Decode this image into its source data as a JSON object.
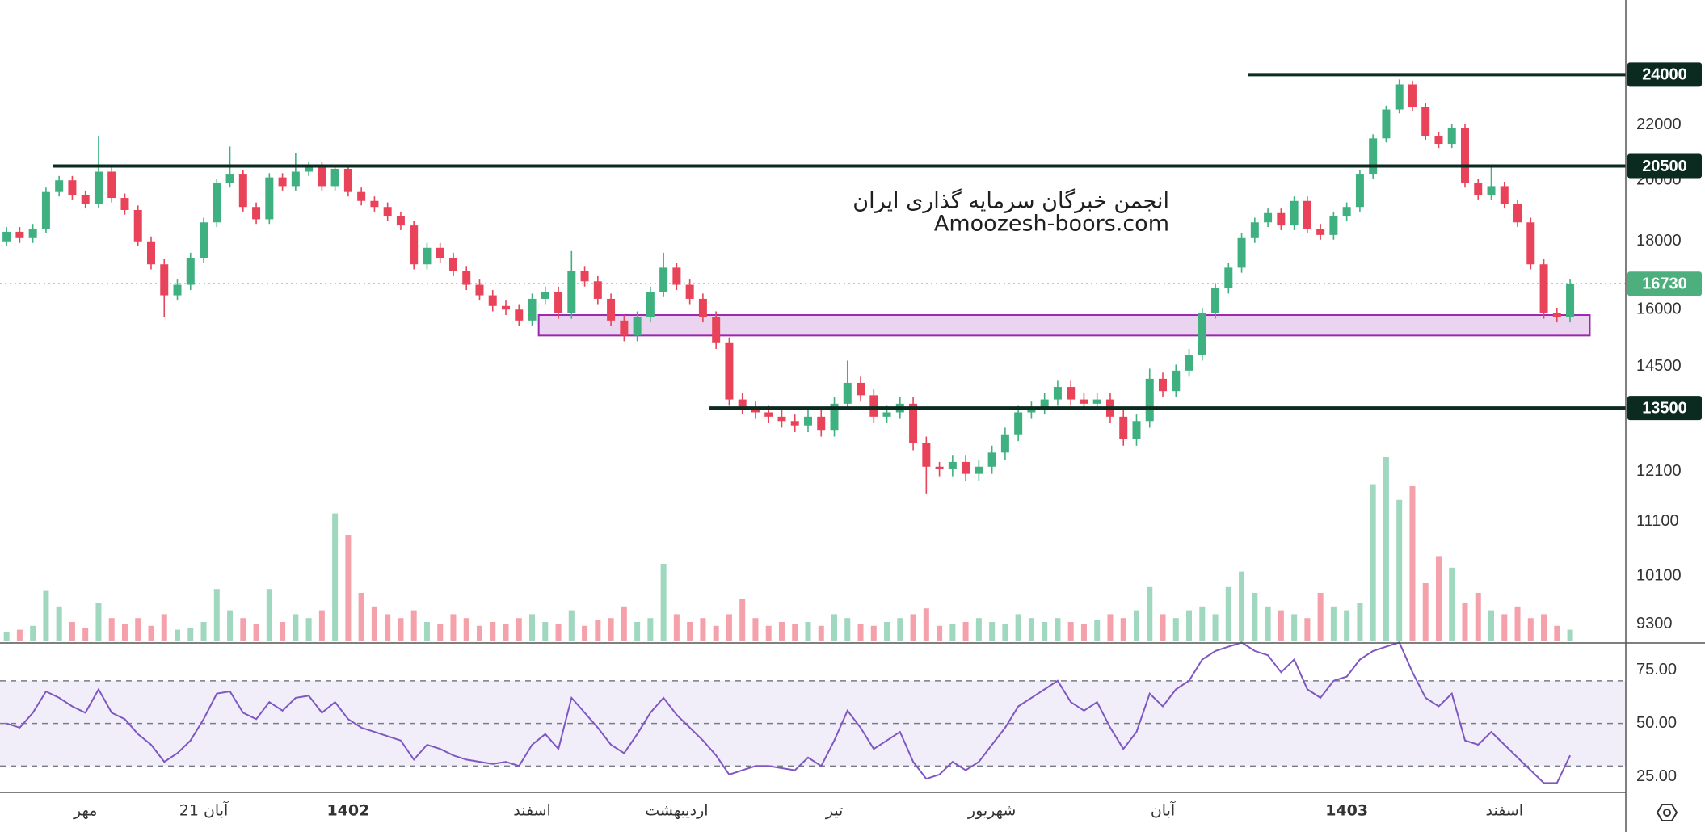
{
  "chart_data": {
    "type": "candlestick",
    "log_scale": true,
    "grid": false,
    "up_color": "#3fb07f",
    "down_color": "#e9435a",
    "ylim": [
      9025,
      27300
    ],
    "yticks": [
      22000,
      20000,
      18000,
      16000,
      14500,
      12100,
      11100,
      10100,
      9300
    ],
    "categories": [
      null,
      null,
      null,
      null,
      null,
      null,
      "مهر",
      null,
      null,
      null,
      null,
      null,
      null,
      null,
      null,
      "21 آبان",
      null,
      null,
      null,
      null,
      null,
      null,
      null,
      null,
      null,
      null,
      "1402",
      null,
      null,
      null,
      null,
      null,
      null,
      null,
      null,
      null,
      null,
      null,
      null,
      null,
      "اسفند",
      null,
      null,
      null,
      null,
      null,
      null,
      null,
      null,
      null,
      null,
      "اردیبهشت",
      null,
      null,
      null,
      null,
      null,
      null,
      null,
      null,
      null,
      null,
      null,
      "تیر",
      null,
      null,
      null,
      null,
      null,
      null,
      null,
      null,
      null,
      null,
      null,
      "شهریور",
      null,
      null,
      null,
      null,
      null,
      null,
      null,
      null,
      null,
      null,
      null,
      null,
      "آبان",
      null,
      null,
      null,
      null,
      null,
      null,
      null,
      null,
      null,
      null,
      null,
      null,
      null,
      "1403",
      null,
      null,
      null,
      null,
      null,
      null,
      null,
      null,
      null,
      null,
      null,
      "اسفند",
      null,
      null,
      null,
      null,
      null
    ],
    "candles": [
      [
        18000,
        18450,
        17850,
        18300
      ],
      [
        18300,
        18450,
        17950,
        18100
      ],
      [
        18100,
        18550,
        17950,
        18400
      ],
      [
        18400,
        19750,
        18250,
        19600
      ],
      [
        19600,
        20150,
        19450,
        20000
      ],
      [
        20000,
        20150,
        19350,
        19500
      ],
      [
        19500,
        19650,
        19050,
        19200
      ],
      [
        19200,
        21600,
        19050,
        20300
      ],
      [
        20300,
        20450,
        19250,
        19400
      ],
      [
        19400,
        19550,
        18850,
        19000
      ],
      [
        19000,
        19150,
        17850,
        18000
      ],
      [
        18000,
        18150,
        17150,
        17300
      ],
      [
        17300,
        17450,
        15800,
        16400
      ],
      [
        16400,
        16850,
        16250,
        16700
      ],
      [
        16700,
        17650,
        16550,
        17500
      ],
      [
        17500,
        18750,
        17350,
        18600
      ],
      [
        18600,
        20050,
        18450,
        19900
      ],
      [
        19900,
        21200,
        19750,
        20200
      ],
      [
        20200,
        20350,
        18950,
        19100
      ],
      [
        19100,
        19250,
        18550,
        18700
      ],
      [
        18700,
        20250,
        18550,
        20100
      ],
      [
        20100,
        20250,
        19650,
        19800
      ],
      [
        19800,
        20950,
        19650,
        20300
      ],
      [
        20300,
        20650,
        20150,
        20500
      ],
      [
        20500,
        20650,
        19650,
        19800
      ],
      [
        19800,
        20550,
        19650,
        20400
      ],
      [
        20400,
        20550,
        19450,
        19600
      ],
      [
        19600,
        19750,
        19150,
        19300
      ],
      [
        19300,
        19450,
        18950,
        19100
      ],
      [
        19100,
        19250,
        18650,
        18800
      ],
      [
        18800,
        18950,
        18350,
        18500
      ],
      [
        18500,
        18650,
        17150,
        17300
      ],
      [
        17300,
        17950,
        17150,
        17800
      ],
      [
        17800,
        17950,
        17350,
        17500
      ],
      [
        17500,
        17650,
        16950,
        17100
      ],
      [
        17100,
        17250,
        16550,
        16700
      ],
      [
        16700,
        16850,
        16250,
        16400
      ],
      [
        16400,
        16550,
        15950,
        16100
      ],
      [
        16100,
        16250,
        15850,
        16000
      ],
      [
        16000,
        16150,
        15550,
        15700
      ],
      [
        15700,
        16450,
        15550,
        16300
      ],
      [
        16300,
        16650,
        16150,
        16500
      ],
      [
        16500,
        16650,
        15750,
        15900
      ],
      [
        15900,
        17700,
        15750,
        17100
      ],
      [
        17100,
        17250,
        16650,
        16800
      ],
      [
        16800,
        16950,
        16150,
        16300
      ],
      [
        16300,
        16450,
        15550,
        15700
      ],
      [
        15700,
        15850,
        15150,
        15300
      ],
      [
        15300,
        15950,
        15150,
        15800
      ],
      [
        15800,
        16650,
        15650,
        16500
      ],
      [
        16500,
        17650,
        16350,
        17200
      ],
      [
        17200,
        17350,
        16550,
        16700
      ],
      [
        16700,
        16850,
        16150,
        16300
      ],
      [
        16300,
        16450,
        15650,
        15800
      ],
      [
        15800,
        15950,
        14950,
        15100
      ],
      [
        15100,
        15250,
        13550,
        13700
      ],
      [
        13700,
        13850,
        13350,
        13500
      ],
      [
        13500,
        13650,
        13250,
        13400
      ],
      [
        13400,
        13550,
        13150,
        13300
      ],
      [
        13300,
        13450,
        13050,
        13200
      ],
      [
        13200,
        13350,
        12950,
        13100
      ],
      [
        13100,
        13450,
        12950,
        13300
      ],
      [
        13300,
        13450,
        12850,
        13000
      ],
      [
        13000,
        13750,
        12850,
        13600
      ],
      [
        13600,
        14650,
        13450,
        14100
      ],
      [
        14100,
        14250,
        13650,
        13800
      ],
      [
        13800,
        13950,
        13150,
        13300
      ],
      [
        13300,
        13550,
        13150,
        13400
      ],
      [
        13400,
        13750,
        13250,
        13600
      ],
      [
        13600,
        13750,
        12550,
        12700
      ],
      [
        12700,
        12850,
        11650,
        12200
      ],
      [
        12200,
        12300,
        12000,
        12150
      ],
      [
        12150,
        12450,
        12000,
        12300
      ],
      [
        12300,
        12450,
        11900,
        12050
      ],
      [
        12050,
        12350,
        11900,
        12200
      ],
      [
        12200,
        12650,
        12050,
        12500
      ],
      [
        12500,
        13050,
        12350,
        12900
      ],
      [
        12900,
        13550,
        12750,
        13400
      ],
      [
        13400,
        13650,
        13250,
        13500
      ],
      [
        13500,
        13850,
        13350,
        13700
      ],
      [
        13700,
        14150,
        13550,
        14000
      ],
      [
        14000,
        14150,
        13550,
        13700
      ],
      [
        13700,
        13850,
        13450,
        13600
      ],
      [
        13600,
        13850,
        13450,
        13700
      ],
      [
        13700,
        13850,
        13150,
        13300
      ],
      [
        13300,
        13450,
        12650,
        12800
      ],
      [
        12800,
        13350,
        12650,
        13200
      ],
      [
        13200,
        14450,
        13050,
        14200
      ],
      [
        14200,
        14350,
        13750,
        13900
      ],
      [
        13900,
        14550,
        13750,
        14400
      ],
      [
        14400,
        14950,
        14250,
        14800
      ],
      [
        14800,
        16050,
        14650,
        15900
      ],
      [
        15900,
        16750,
        15750,
        16600
      ],
      [
        16600,
        17350,
        16450,
        17200
      ],
      [
        17200,
        18250,
        17050,
        18100
      ],
      [
        18100,
        18750,
        17950,
        18600
      ],
      [
        18600,
        19050,
        18450,
        18900
      ],
      [
        18900,
        19050,
        18350,
        18500
      ],
      [
        18500,
        19450,
        18350,
        19300
      ],
      [
        19300,
        19450,
        18250,
        18400
      ],
      [
        18400,
        18550,
        18050,
        18200
      ],
      [
        18200,
        18950,
        18050,
        18800
      ],
      [
        18800,
        19250,
        18650,
        19100
      ],
      [
        19100,
        20350,
        18950,
        20200
      ],
      [
        20200,
        21650,
        20050,
        21500
      ],
      [
        21500,
        22750,
        21350,
        22600
      ],
      [
        22600,
        23800,
        22450,
        23600
      ],
      [
        23600,
        23750,
        22550,
        22700
      ],
      [
        22700,
        22850,
        21450,
        21600
      ],
      [
        21600,
        21750,
        21150,
        21300
      ],
      [
        21300,
        22050,
        21150,
        21900
      ],
      [
        21900,
        22050,
        19750,
        19900
      ],
      [
        19900,
        20050,
        19350,
        19500
      ],
      [
        19500,
        20450,
        19350,
        19800
      ],
      [
        19800,
        19950,
        19050,
        19200
      ],
      [
        19200,
        19350,
        18450,
        18600
      ],
      [
        18600,
        18750,
        17150,
        17300
      ],
      [
        17300,
        17450,
        15750,
        15900
      ],
      [
        15900,
        16050,
        15650,
        15800
      ],
      [
        15800,
        16850,
        15650,
        16730
      ]
    ],
    "volume": {
      "ylim": [
        0,
        100
      ],
      "values": [
        5,
        6,
        8,
        26,
        18,
        10,
        7,
        20,
        12,
        9,
        12,
        8,
        14,
        6,
        7,
        10,
        27,
        16,
        12,
        9,
        27,
        10,
        14,
        12,
        16,
        66,
        55,
        25,
        18,
        14,
        12,
        16,
        10,
        9,
        14,
        12,
        8,
        10,
        9,
        12,
        14,
        10,
        9,
        16,
        8,
        11,
        12,
        18,
        10,
        12,
        40,
        14,
        10,
        12,
        8,
        14,
        22,
        12,
        8,
        10,
        9,
        10,
        8,
        14,
        12,
        9,
        8,
        10,
        12,
        14,
        17,
        8,
        9,
        10,
        12,
        10,
        9,
        14,
        12,
        10,
        12,
        10,
        9,
        11,
        14,
        12,
        16,
        28,
        14,
        12,
        16,
        18,
        14,
        28,
        36,
        25,
        18,
        16,
        14,
        12,
        25,
        18,
        16,
        20,
        81,
        95,
        73,
        80,
        30,
        44,
        38,
        20,
        25,
        16,
        14,
        18,
        12,
        14,
        8,
        6
      ]
    },
    "levels": [
      {
        "value": 24000,
        "start": 95,
        "color": "#0b2a20"
      },
      {
        "value": 20500,
        "start": 4,
        "color": "#0b2a20"
      },
      {
        "value": 13500,
        "start": 54,
        "color": "#0b2a20"
      }
    ],
    "zone": {
      "low": 15300,
      "high": 15850,
      "start": 41,
      "end": 121,
      "color": "#9c27b0"
    },
    "last_price": {
      "value": 16730,
      "color": "#4caf7d"
    },
    "watermark": [
      "انجمن خبرگان سرمایه گذاری ایران",
      "Amoozesh-boors.com"
    ],
    "rsi": {
      "color": "#7e57c2",
      "ylim": [
        18,
        87
      ],
      "yticks": [
        {
          "value": 75,
          "label": "75.00"
        },
        {
          "value": 50,
          "label": "50.00"
        },
        {
          "value": 25,
          "label": "25.00"
        }
      ],
      "levels": [
        70,
        50,
        30
      ],
      "values": [
        50,
        48,
        55,
        65,
        62,
        58,
        55,
        66,
        55,
        52,
        45,
        40,
        32,
        36,
        42,
        52,
        64,
        65,
        55,
        52,
        60,
        56,
        62,
        63,
        55,
        60,
        52,
        48,
        46,
        44,
        42,
        33,
        40,
        38,
        35,
        33,
        32,
        31,
        32,
        30,
        40,
        45,
        38,
        62,
        55,
        48,
        40,
        36,
        45,
        55,
        62,
        54,
        48,
        42,
        35,
        26,
        28,
        30,
        30,
        29,
        28,
        34,
        30,
        42,
        56,
        48,
        38,
        42,
        46,
        32,
        24,
        26,
        32,
        28,
        32,
        40,
        48,
        58,
        62,
        66,
        70,
        60,
        56,
        60,
        48,
        38,
        46,
        64,
        58,
        66,
        70,
        80,
        84,
        86,
        88,
        84,
        82,
        74,
        80,
        66,
        62,
        70,
        72,
        80,
        84,
        86,
        88,
        74,
        62,
        58,
        64,
        42,
        40,
        46,
        40,
        34,
        28,
        22,
        22,
        35
      ]
    }
  }
}
